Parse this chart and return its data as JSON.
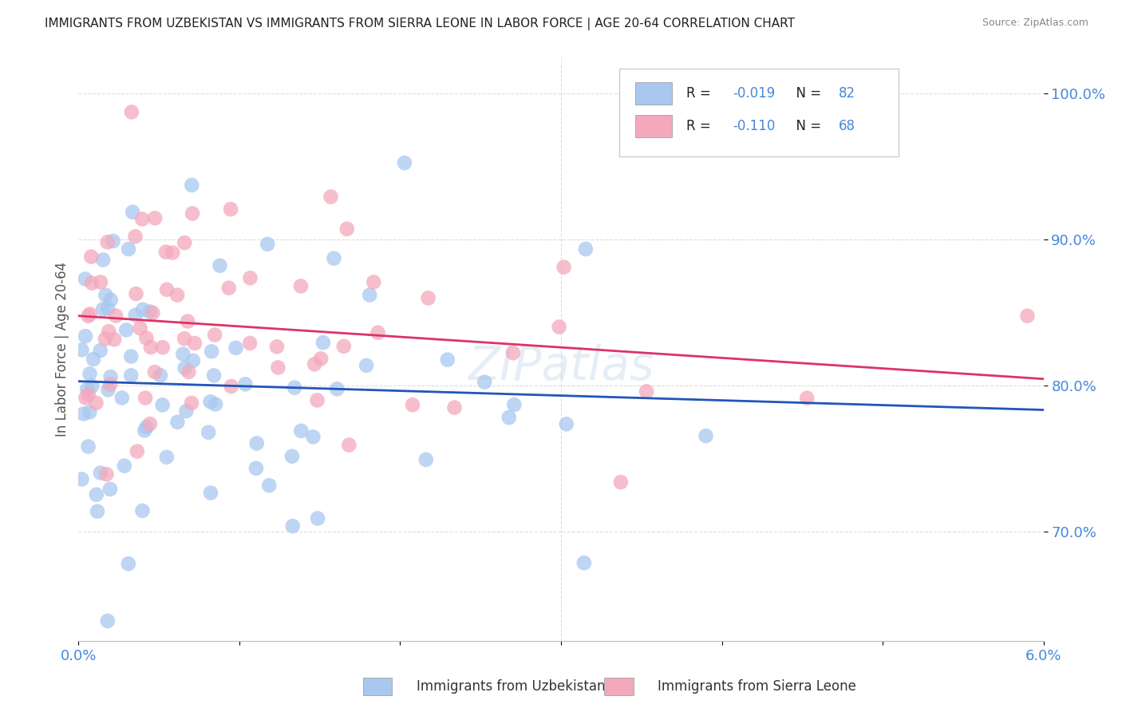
{
  "title": "IMMIGRANTS FROM UZBEKISTAN VS IMMIGRANTS FROM SIERRA LEONE IN LABOR FORCE | AGE 20-64 CORRELATION CHART",
  "source": "Source: ZipAtlas.com",
  "ylabel": "In Labor Force | Age 20-64",
  "xlim": [
    0.0,
    0.06
  ],
  "ylim": [
    0.625,
    1.025
  ],
  "yticks": [
    0.7,
    0.8,
    0.9,
    1.0
  ],
  "ytick_labels": [
    "70.0%",
    "80.0%",
    "90.0%",
    "100.0%"
  ],
  "xtick_vals": [
    0.0,
    0.01,
    0.02,
    0.03,
    0.04,
    0.05,
    0.06
  ],
  "xtick_labels": [
    "0.0%",
    "",
    "",
    "",
    "",
    "",
    "6.0%"
  ],
  "uzbekistan_color": "#a8c8f0",
  "sierra_leone_color": "#f4a8bc",
  "uzbekistan_line_color": "#2255bb",
  "sierra_leone_line_color": "#dd3366",
  "R_uzbekistan": -0.019,
  "N_uzbekistan": 82,
  "R_sierra_leone": -0.11,
  "N_sierra_leone": 68,
  "background_color": "#ffffff",
  "grid_color": "#dddddd",
  "title_color": "#222222",
  "axis_label_color": "#555555",
  "tick_color_y": "#4488dd",
  "tick_color_x": "#4488dd",
  "legend_text_color": "#222222",
  "legend_value_color": "#4488dd"
}
